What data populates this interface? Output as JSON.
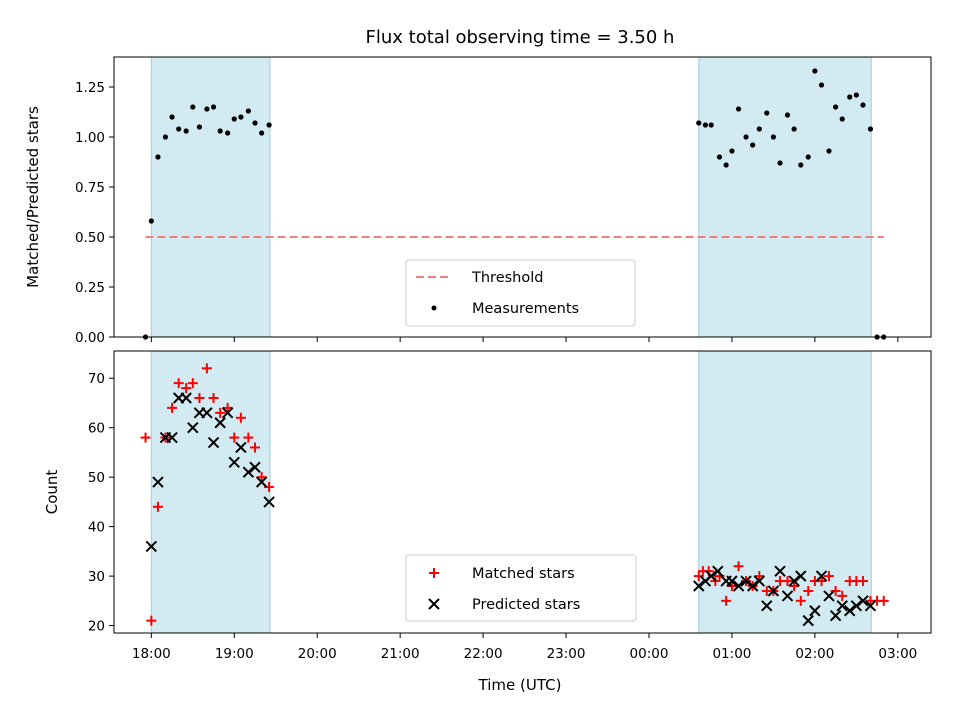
{
  "title": "Flux total observing time = 3.50 h",
  "colors": {
    "band": "#add8e6",
    "band_edge": "#9fcfdf",
    "threshold": "#f08080",
    "measurement": "#000000",
    "matched": "#ff0000",
    "predicted": "#000000"
  },
  "chart_data": [
    {
      "type": "scatter",
      "name": "ratio",
      "ylabel": "Matched/Predicted stars",
      "ylim": [
        0,
        1.4
      ],
      "yticks": [
        0,
        0.25,
        0.5,
        0.75,
        1.0,
        1.25
      ],
      "ytick_labels": [
        "0.00",
        "0.25",
        "0.50",
        "0.75",
        "1.00",
        "1.25"
      ],
      "xlim_hours": [
        17.55,
        27.4
      ],
      "shaded_intervals_hours": [
        [
          18.0,
          19.43
        ],
        [
          24.6,
          26.68
        ]
      ],
      "threshold": {
        "label": "Threshold",
        "value": 0.5,
        "x_range_hours": [
          17.93,
          26.83
        ]
      },
      "measurements": {
        "label": "Measurements",
        "x": [
          17.93,
          18.0,
          18.08,
          18.17,
          18.25,
          18.33,
          18.42,
          18.5,
          18.58,
          18.67,
          18.75,
          18.83,
          18.92,
          19.0,
          19.08,
          19.17,
          19.25,
          19.33,
          19.42,
          24.6,
          24.68,
          24.75,
          24.85,
          24.93,
          25.0,
          25.08,
          25.17,
          25.25,
          25.33,
          25.42,
          25.5,
          25.58,
          25.67,
          25.75,
          25.83,
          25.92,
          26.0,
          26.08,
          26.17,
          26.25,
          26.33,
          26.42,
          26.5,
          26.58,
          26.67,
          26.75,
          26.83
        ],
        "y": [
          0.0,
          0.58,
          0.9,
          1.0,
          1.1,
          1.04,
          1.03,
          1.15,
          1.05,
          1.14,
          1.15,
          1.03,
          1.02,
          1.09,
          1.1,
          1.13,
          1.07,
          1.02,
          1.06,
          1.07,
          1.06,
          1.06,
          0.9,
          0.86,
          0.93,
          1.14,
          1.0,
          0.96,
          1.04,
          1.12,
          1.0,
          0.87,
          1.11,
          1.04,
          0.86,
          0.9,
          1.33,
          1.26,
          0.93,
          1.15,
          1.09,
          1.2,
          1.21,
          1.16,
          1.04,
          0.0,
          0.0
        ]
      },
      "legend_location": "lower-center"
    },
    {
      "type": "scatter",
      "name": "counts",
      "xlabel": "Time (UTC)",
      "ylabel": "Count",
      "ylim": [
        18.5,
        75.5
      ],
      "yticks": [
        20,
        30,
        40,
        50,
        60,
        70
      ],
      "ytick_labels": [
        "20",
        "30",
        "40",
        "50",
        "60",
        "70"
      ],
      "xlim_hours": [
        17.55,
        27.4
      ],
      "xticks_hours": [
        18,
        19,
        20,
        21,
        22,
        23,
        24,
        25,
        26,
        27
      ],
      "xtick_labels": [
        "18:00",
        "19:00",
        "20:00",
        "21:00",
        "22:00",
        "23:00",
        "00:00",
        "01:00",
        "02:00",
        "03:00"
      ],
      "shaded_intervals_hours": [
        [
          18.0,
          19.43
        ],
        [
          24.6,
          26.68
        ]
      ],
      "series": [
        {
          "name": "Matched stars",
          "marker": "plus",
          "x": [
            17.93,
            18.0,
            18.08,
            18.17,
            18.25,
            18.33,
            18.42,
            18.5,
            18.58,
            18.67,
            18.75,
            18.83,
            18.92,
            19.0,
            19.08,
            19.17,
            19.25,
            19.33,
            19.42,
            24.6,
            24.65,
            24.72,
            24.8,
            24.85,
            24.93,
            25.0,
            25.08,
            25.17,
            25.25,
            25.33,
            25.42,
            25.5,
            25.58,
            25.67,
            25.75,
            25.83,
            25.92,
            26.0,
            26.08,
            26.17,
            26.25,
            26.33,
            26.42,
            26.5,
            26.58,
            26.67,
            26.75,
            26.83
          ],
          "y": [
            58,
            21,
            44,
            58,
            64,
            69,
            68,
            69,
            66,
            72,
            66,
            63,
            64,
            58,
            62,
            58,
            56,
            50,
            48,
            30,
            31,
            31,
            29,
            30,
            25,
            28,
            32,
            29,
            28,
            30,
            27,
            27,
            29,
            29,
            28,
            25,
            27,
            29,
            29,
            30,
            27,
            26,
            29,
            29,
            29,
            25,
            25,
            25
          ]
        },
        {
          "name": "Predicted stars",
          "marker": "x",
          "x": [
            18.0,
            18.08,
            18.17,
            18.25,
            18.33,
            18.42,
            18.5,
            18.58,
            18.67,
            18.75,
            18.83,
            18.92,
            19.0,
            19.08,
            19.17,
            19.25,
            19.33,
            19.42,
            24.6,
            24.68,
            24.75,
            24.83,
            24.93,
            25.0,
            25.08,
            25.17,
            25.25,
            25.33,
            25.42,
            25.5,
            25.58,
            25.67,
            25.75,
            25.83,
            25.92,
            26.0,
            26.08,
            26.17,
            26.25,
            26.33,
            26.42,
            26.5,
            26.58,
            26.67
          ],
          "y": [
            36,
            49,
            58,
            58,
            66,
            66,
            60,
            63,
            63,
            57,
            61,
            63,
            53,
            56,
            51,
            52,
            49,
            45,
            28,
            29,
            30,
            31,
            29,
            29,
            28,
            29,
            28,
            29,
            24,
            27,
            31,
            26,
            29,
            30,
            21,
            23,
            30,
            26,
            22,
            24,
            23,
            24,
            25,
            24
          ]
        }
      ],
      "legend_location": "lower-center"
    }
  ]
}
